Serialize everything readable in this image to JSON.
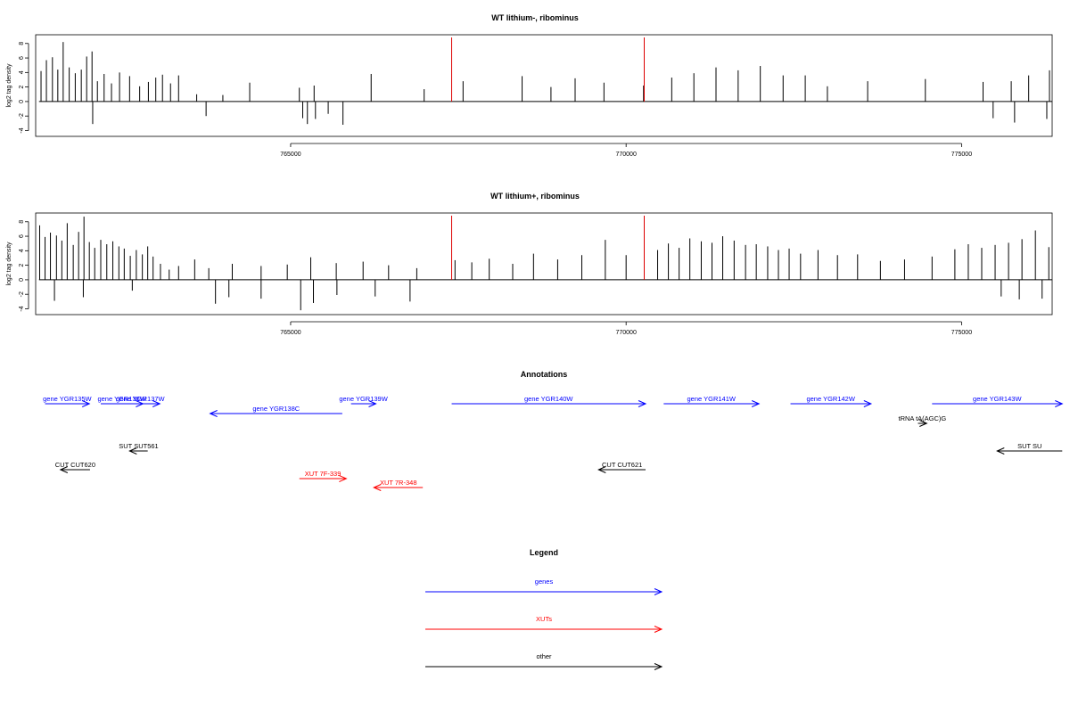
{
  "chart_data": [
    {
      "type": "bar",
      "title": "WT lithium-, ribominus",
      "ylabel": "log2 tag density",
      "xlabel": "",
      "xlim": [
        761200,
        776350
      ],
      "ylim": [
        -4.8,
        9.2
      ],
      "yticks": [
        -4,
        -2,
        0,
        2,
        4,
        6,
        8
      ],
      "xticks": [
        765000,
        770000,
        775000
      ],
      "xtick_labels": [
        "765000",
        "770000",
        "775000"
      ],
      "markers": [
        {
          "x": 767400,
          "color": "#dd0000"
        },
        {
          "x": 770270,
          "color": "#dd0000"
        }
      ],
      "x": [
        761280,
        761360,
        761450,
        761530,
        761610,
        761700,
        761790,
        761880,
        761960,
        762040,
        762120,
        762220,
        762330,
        762450,
        762600,
        762750,
        762880,
        762990,
        763090,
        763210,
        763330,
        763600,
        763990,
        764390,
        765130,
        765350,
        766200,
        766990,
        767570,
        768450,
        768880,
        769240,
        769670,
        770260,
        770680,
        771010,
        771340,
        771670,
        772000,
        772340,
        772670,
        773000,
        773600,
        774460,
        775320,
        775740,
        776000,
        776310,
        762050,
        763740,
        765180,
        765250,
        765370,
        765560,
        765780,
        775470,
        775790,
        776270
      ],
      "y": [
        4.2,
        5.7,
        6.1,
        4.4,
        8.2,
        4.7,
        3.9,
        4.4,
        6.2,
        6.9,
        2.8,
        3.8,
        2.5,
        4.0,
        3.5,
        2.1,
        2.7,
        3.3,
        3.7,
        2.5,
        3.6,
        1.0,
        0.9,
        2.6,
        1.9,
        2.2,
        3.8,
        1.7,
        2.8,
        3.5,
        2.0,
        3.2,
        2.6,
        2.2,
        3.3,
        3.9,
        4.7,
        4.3,
        4.9,
        3.6,
        3.6,
        2.1,
        2.8,
        3.1,
        2.7,
        2.8,
        3.6,
        4.3,
        -3.1,
        -2.0,
        -2.3,
        -3.1,
        -2.4,
        -1.7,
        -3.2,
        -2.3,
        -2.9,
        -2.4
      ]
    },
    {
      "type": "bar",
      "title": "WT lithium+, ribominus",
      "ylabel": "log2 tag density",
      "xlabel": "",
      "xlim": [
        761200,
        776350
      ],
      "ylim": [
        -4.8,
        9.2
      ],
      "yticks": [
        -4,
        -2,
        0,
        2,
        4,
        6,
        8
      ],
      "xticks": [
        765000,
        770000,
        775000
      ],
      "xtick_labels": [
        "765000",
        "770000",
        "775000"
      ],
      "markers": [
        {
          "x": 767400,
          "color": "#dd0000"
        },
        {
          "x": 770270,
          "color": "#dd0000"
        }
      ],
      "x": [
        761260,
        761340,
        761420,
        761510,
        761590,
        761670,
        761760,
        761840,
        761920,
        762000,
        762080,
        762170,
        762260,
        762350,
        762440,
        762520,
        762610,
        762700,
        762790,
        762870,
        762950,
        763060,
        763190,
        763330,
        763570,
        763780,
        764130,
        764560,
        764950,
        765300,
        765680,
        766080,
        766460,
        766880,
        767450,
        767700,
        767960,
        768310,
        768620,
        768980,
        769340,
        769690,
        770000,
        770270,
        770470,
        770630,
        770790,
        770950,
        771120,
        771280,
        771440,
        771610,
        771780,
        771940,
        772110,
        772270,
        772430,
        772600,
        772860,
        773150,
        773450,
        773790,
        774150,
        774560,
        774900,
        775100,
        775300,
        775500,
        775700,
        775900,
        776100,
        776300,
        761480,
        761910,
        762640,
        763880,
        764080,
        764560,
        765150,
        765340,
        765690,
        766260,
        766780,
        775590,
        775860,
        776200
      ],
      "y": [
        7.5,
        5.9,
        6.5,
        6.1,
        5.4,
        7.8,
        4.8,
        6.6,
        8.7,
        5.2,
        4.4,
        5.5,
        4.9,
        5.3,
        4.6,
        4.3,
        3.3,
        4.1,
        3.5,
        4.6,
        3.2,
        2.2,
        1.4,
        1.9,
        2.8,
        1.6,
        2.2,
        1.9,
        2.1,
        3.1,
        2.3,
        2.5,
        2.0,
        1.6,
        2.7,
        2.4,
        2.9,
        2.2,
        3.6,
        2.8,
        3.4,
        5.5,
        3.4,
        4.9,
        4.1,
        5.0,
        4.4,
        5.7,
        5.3,
        5.1,
        6.0,
        5.4,
        4.8,
        4.9,
        4.6,
        4.1,
        4.3,
        3.6,
        4.1,
        3.4,
        3.5,
        2.6,
        2.8,
        3.2,
        4.2,
        4.9,
        4.4,
        4.8,
        5.1,
        5.6,
        6.8,
        4.5,
        -2.9,
        -2.4,
        -1.5,
        -3.3,
        -2.4,
        -2.6,
        -4.2,
        -3.2,
        -2.1,
        -2.3,
        -3.0,
        -2.3,
        -2.7,
        -2.6
      ]
    }
  ],
  "annotations": {
    "title": "Annotations",
    "features": [
      {
        "label": "gene YGR135W",
        "start": 761340,
        "end": 762000,
        "strand": "+",
        "color": "#0000ff",
        "row": 0
      },
      {
        "label": "gene YGR136W",
        "start": 762170,
        "end": 762800,
        "strand": "+",
        "color": "#0000ff",
        "row": 0
      },
      {
        "label": "gene YGR137W",
        "start": 762470,
        "end": 763050,
        "strand": "+",
        "color": "#0000ff",
        "row": 0
      },
      {
        "label": "gene YGR138C",
        "start": 763800,
        "end": 765770,
        "strand": "-",
        "color": "#0000ff",
        "row": 1
      },
      {
        "label": "gene YGR139W",
        "start": 765900,
        "end": 766270,
        "strand": "+",
        "color": "#0000ff",
        "row": 0
      },
      {
        "label": "gene YGR140W",
        "start": 767400,
        "end": 770290,
        "strand": "+",
        "color": "#0000ff",
        "row": 0
      },
      {
        "label": "gene YGR141W",
        "start": 770560,
        "end": 771980,
        "strand": "+",
        "color": "#0000ff",
        "row": 0
      },
      {
        "label": "gene YGR142W",
        "start": 772450,
        "end": 773650,
        "strand": "+",
        "color": "#0000ff",
        "row": 0
      },
      {
        "label": "gene YGR143W",
        "start": 774560,
        "end": 776500,
        "strand": "+",
        "color": "#0000ff",
        "row": 0
      },
      {
        "label": "tRNA tA(AGC)G",
        "start": 774350,
        "end": 774480,
        "strand": "+",
        "color": "#000000",
        "row": 2
      },
      {
        "label": "SUT SUT561",
        "start": 762600,
        "end": 762870,
        "strand": "-",
        "color": "#000000",
        "row": 3
      },
      {
        "label": "SUT SU",
        "start": 775530,
        "end": 776500,
        "strand": "-",
        "color": "#000000",
        "row": 3
      },
      {
        "label": "CUT CUT620",
        "start": 761570,
        "end": 762010,
        "strand": "-",
        "color": "#000000",
        "row": 4
      },
      {
        "label": "CUT CUT621",
        "start": 769590,
        "end": 770290,
        "strand": "-",
        "color": "#000000",
        "row": 4
      },
      {
        "label": "XUT 7F-339",
        "start": 765130,
        "end": 765830,
        "strand": "+",
        "color": "#ff0000",
        "row": 5
      },
      {
        "label": "XUT 7R-348",
        "start": 766240,
        "end": 766970,
        "strand": "-",
        "color": "#ff0000",
        "row": 6
      }
    ]
  },
  "legend": {
    "title": "Legend",
    "items": [
      {
        "label": "genes",
        "color": "#0000ff"
      },
      {
        "label": "XUTs",
        "color": "#ff0000"
      },
      {
        "label": "other",
        "color": "#000000"
      }
    ]
  }
}
